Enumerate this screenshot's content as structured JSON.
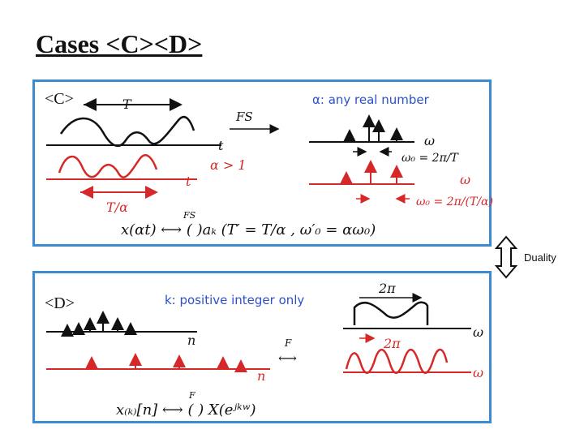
{
  "title": "Cases <C><D>",
  "panel_c": {
    "label": "<C>",
    "period_label": "T",
    "fs_label": "FS",
    "t_label": "t",
    "alpha_label": "α > 1",
    "t2_label": "t",
    "t_alpha_label": "T/α",
    "omega_label": "ω",
    "omega0_label": "ω₀ = 2π/T",
    "omega2_label": "ω",
    "omega0b_label": "ω₀ = 2π/(T/α)",
    "alpha_note": "α: any real number",
    "formula_fs": "FS",
    "formula": "x(αt) ⟷ (   )aₖ (T′ = T/α , ω′₀ = αω₀)"
  },
  "panel_d": {
    "label": "<D>",
    "k_note": "k: positive integer only",
    "n_label": "n",
    "n2_label": "n",
    "f_label": "F",
    "two_pi_top": "2π",
    "two_pi_bottom": "2π",
    "omega_label": "ω",
    "omega2_label": "ω",
    "formula_f": "F",
    "formula": "x₍ₖ₎[n] ⟷ (   ) X(eʲᵏʷ)"
  },
  "duality": "Duality",
  "colors": {
    "black": "#111111",
    "red": "#d62828",
    "blue": "#2b50c8",
    "panel_border": "#3c8ad0"
  }
}
